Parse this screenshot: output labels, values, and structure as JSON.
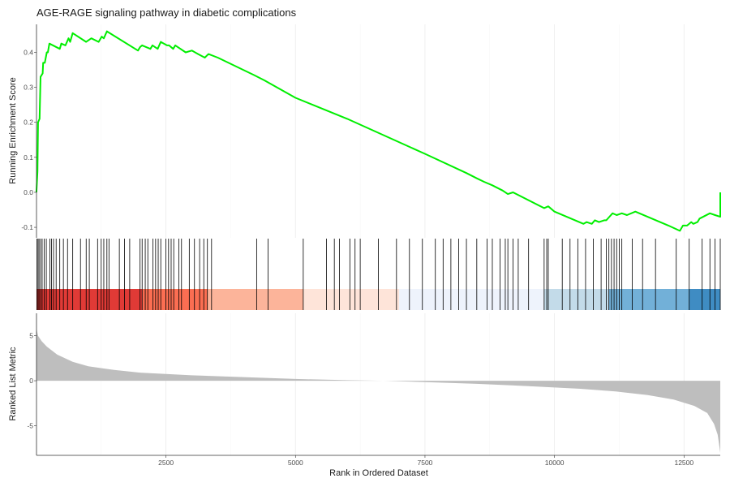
{
  "chart_data": {
    "type": "line",
    "title": "AGE-RAGE signaling pathway in diabetic complications",
    "xlabel": "Rank in Ordered Dataset",
    "xlim": [
      1,
      13200
    ],
    "xticks": [
      2500,
      5000,
      7500,
      10000,
      12500
    ],
    "panels": [
      {
        "name": "running-score",
        "ylabel": "Running Enrichment Score",
        "ylim": [
          -0.13,
          0.48
        ],
        "yticks": [
          -0.1,
          0.0,
          0.1,
          0.2,
          0.3,
          0.4
        ],
        "line_color": "#00ee00",
        "points": [
          [
            0,
            0.0
          ],
          [
            20,
            0.06
          ],
          [
            30,
            0.2
          ],
          [
            60,
            0.21
          ],
          [
            80,
            0.33
          ],
          [
            120,
            0.34
          ],
          [
            130,
            0.37
          ],
          [
            160,
            0.37
          ],
          [
            200,
            0.4
          ],
          [
            220,
            0.4
          ],
          [
            250,
            0.425
          ],
          [
            450,
            0.41
          ],
          [
            480,
            0.425
          ],
          [
            560,
            0.42
          ],
          [
            620,
            0.44
          ],
          [
            650,
            0.43
          ],
          [
            700,
            0.455
          ],
          [
            960,
            0.43
          ],
          [
            1060,
            0.44
          ],
          [
            1200,
            0.43
          ],
          [
            1260,
            0.445
          ],
          [
            1300,
            0.44
          ],
          [
            1360,
            0.46
          ],
          [
            1960,
            0.405
          ],
          [
            2000,
            0.415
          ],
          [
            2040,
            0.42
          ],
          [
            2200,
            0.41
          ],
          [
            2240,
            0.42
          ],
          [
            2340,
            0.41
          ],
          [
            2400,
            0.43
          ],
          [
            2520,
            0.42
          ],
          [
            2560,
            0.42
          ],
          [
            2640,
            0.41
          ],
          [
            2680,
            0.42
          ],
          [
            2880,
            0.4
          ],
          [
            3000,
            0.405
          ],
          [
            3120,
            0.395
          ],
          [
            3250,
            0.385
          ],
          [
            3320,
            0.395
          ],
          [
            3500,
            0.385
          ],
          [
            4200,
            0.335
          ],
          [
            4400,
            0.32
          ],
          [
            5000,
            0.27
          ],
          [
            6000,
            0.21
          ],
          [
            7500,
            0.11
          ],
          [
            8300,
            0.055
          ],
          [
            8500,
            0.04
          ],
          [
            8640,
            0.03
          ],
          [
            8800,
            0.02
          ],
          [
            9000,
            0.005
          ],
          [
            9100,
            -0.005
          ],
          [
            9200,
            0.0
          ],
          [
            9800,
            -0.045
          ],
          [
            9880,
            -0.04
          ],
          [
            10000,
            -0.055
          ],
          [
            10560,
            -0.09
          ],
          [
            10620,
            -0.085
          ],
          [
            10720,
            -0.09
          ],
          [
            10780,
            -0.08
          ],
          [
            10860,
            -0.085
          ],
          [
            10960,
            -0.08
          ],
          [
            11000,
            -0.08
          ],
          [
            11060,
            -0.07
          ],
          [
            11120,
            -0.06
          ],
          [
            11200,
            -0.065
          ],
          [
            11300,
            -0.06
          ],
          [
            11400,
            -0.065
          ],
          [
            11560,
            -0.055
          ],
          [
            12200,
            -0.095
          ],
          [
            12420,
            -0.11
          ],
          [
            12480,
            -0.095
          ],
          [
            12560,
            -0.095
          ],
          [
            12640,
            -0.085
          ],
          [
            12680,
            -0.09
          ],
          [
            12760,
            -0.085
          ],
          [
            12800,
            -0.075
          ],
          [
            13000,
            -0.06
          ],
          [
            13100,
            -0.065
          ],
          [
            13200,
            -0.07
          ],
          [
            13200,
            0.0
          ]
        ]
      },
      {
        "name": "gene-hits",
        "hits": [
          10,
          30,
          50,
          80,
          110,
          150,
          190,
          260,
          290,
          330,
          380,
          450,
          520,
          600,
          700,
          850,
          960,
          1020,
          1180,
          1250,
          1300,
          1360,
          1400,
          1600,
          1700,
          1800,
          2000,
          2040,
          2100,
          2150,
          2250,
          2300,
          2350,
          2400,
          2500,
          2550,
          2600,
          2650,
          2750,
          2800,
          2950,
          3050,
          3150,
          3230,
          3300,
          3380,
          4250,
          4470,
          5150,
          5600,
          5750,
          5850,
          6050,
          6150,
          6250,
          6600,
          6950,
          7200,
          7450,
          7700,
          7850,
          8000,
          8150,
          8300,
          8500,
          8700,
          8800,
          8950,
          9050,
          9100,
          9200,
          9300,
          9500,
          9800,
          9850,
          9880,
          10150,
          10300,
          10450,
          10600,
          10750,
          10900,
          11000,
          11050,
          11100,
          11150,
          11200,
          11250,
          11300,
          11500,
          11700,
          11950,
          12350,
          12600,
          12850,
          13000,
          13100,
          13200
        ],
        "color_bands": [
          {
            "from": 0,
            "to": 2050,
            "color": "#e03a36"
          },
          {
            "from": 2050,
            "to": 3300,
            "color": "#fb6e52"
          },
          {
            "from": 3300,
            "to": 5150,
            "color": "#fcb49a"
          },
          {
            "from": 5150,
            "to": 7000,
            "color": "#fee4d9"
          },
          {
            "from": 7000,
            "to": 9800,
            "color": "#eef3fc"
          },
          {
            "from": 9800,
            "to": 11050,
            "color": "#c3dbe9"
          },
          {
            "from": 11050,
            "to": 12600,
            "color": "#72b0d8"
          },
          {
            "from": 12600,
            "to": 13200,
            "color": "#3f8cc3"
          }
        ]
      },
      {
        "name": "ranked-metric",
        "ylabel": "Ranked List Metric",
        "ylim": [
          -8.3,
          7.5
        ],
        "yticks": [
          -5,
          0,
          5
        ],
        "fill_color": "#bebebe",
        "points": [
          [
            0,
            5.8
          ],
          [
            30,
            5.0
          ],
          [
            100,
            4.4
          ],
          [
            200,
            3.8
          ],
          [
            400,
            2.9
          ],
          [
            700,
            2.1
          ],
          [
            1000,
            1.6
          ],
          [
            1500,
            1.2
          ],
          [
            2000,
            0.9
          ],
          [
            3000,
            0.6
          ],
          [
            4000,
            0.4
          ],
          [
            5000,
            0.2
          ],
          [
            6000,
            0.06
          ],
          [
            6700,
            0.0
          ],
          [
            7500,
            -0.15
          ],
          [
            8500,
            -0.35
          ],
          [
            9500,
            -0.6
          ],
          [
            10500,
            -0.9
          ],
          [
            11200,
            -1.2
          ],
          [
            11800,
            -1.6
          ],
          [
            12300,
            -2.1
          ],
          [
            12700,
            -2.8
          ],
          [
            12950,
            -3.6
          ],
          [
            13080,
            -4.8
          ],
          [
            13150,
            -6.0
          ],
          [
            13200,
            -8.0
          ]
        ]
      }
    ]
  }
}
